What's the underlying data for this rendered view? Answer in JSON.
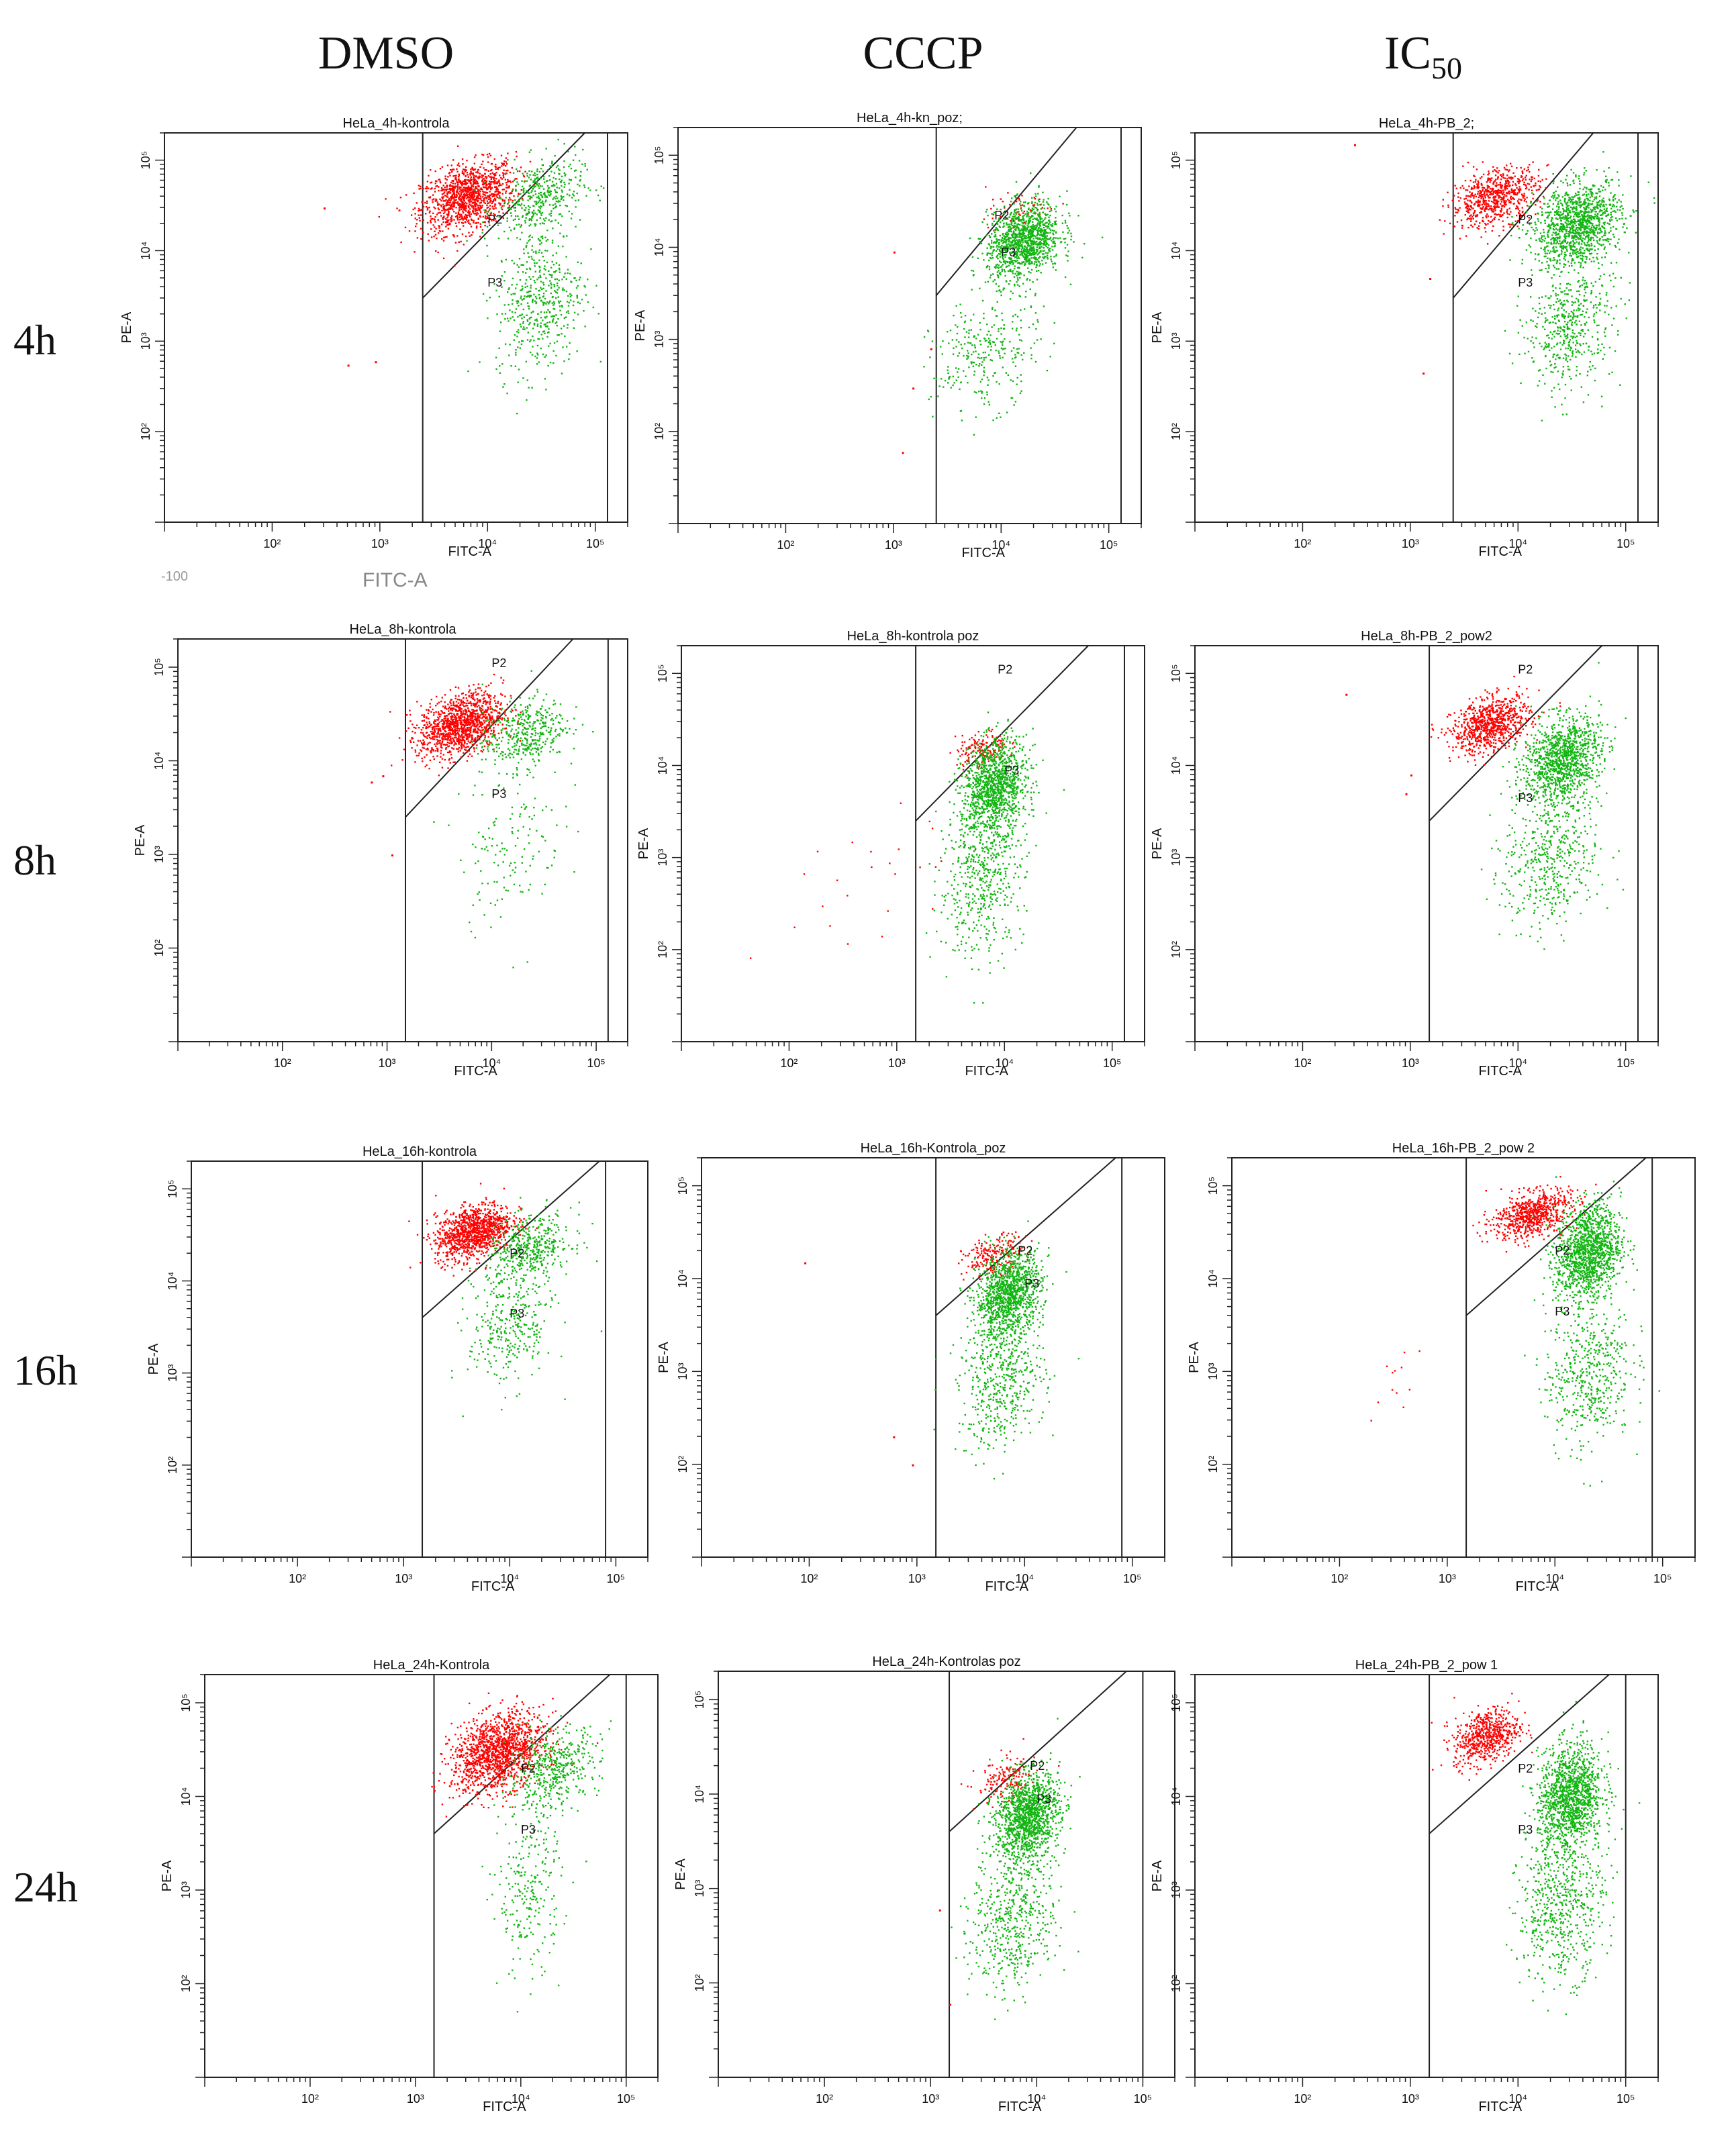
{
  "figure": {
    "columns": [
      "DMSO",
      "CCCP",
      "IC"
    ],
    "ic_subscript": "50",
    "rows": [
      "4h",
      "8h",
      "16h",
      "24h"
    ],
    "stray_labels": [
      "-100",
      "FITC-A"
    ]
  },
  "colors": {
    "red_population": "#ff0000",
    "green_population": "#12b512",
    "axis": "#222222"
  },
  "chart_data": [
    {
      "type": "scatter",
      "title": "HeLa_4h-kontrola",
      "xlabel": "FITC-A",
      "ylabel": "PE-A",
      "scale": "log",
      "xlim": [
        10,
        200000
      ],
      "ylim": [
        10,
        200000
      ],
      "xticks": [
        "10²",
        "10³",
        "10⁴",
        "10⁵"
      ],
      "yticks": [
        "10²",
        "10³",
        "10⁴",
        "10⁵"
      ],
      "gates": [
        "P2",
        "P3"
      ],
      "series": [
        {
          "name": "P2",
          "color": "red",
          "clusters": [
            {
              "x": 6500,
              "y": 40000,
              "sx": 0.22,
              "sy": 0.18,
              "n": 1200
            }
          ],
          "extras": [
            [
              300,
              30000
            ],
            [
              900,
              600
            ],
            [
              500,
              550
            ]
          ]
        },
        {
          "name": "P3",
          "color": "green",
          "clusters": [
            {
              "x": 30000,
              "y": 40000,
              "sx": 0.2,
              "sy": 0.2,
              "n": 400
            },
            {
              "x": 30000,
              "y": 3000,
              "sx": 0.2,
              "sy": 0.4,
              "n": 500
            }
          ]
        }
      ]
    },
    {
      "type": "scatter",
      "title": "HeLa_4h-kn_poz;",
      "xlabel": "FITC-A",
      "ylabel": "PE-A",
      "scale": "log",
      "xlim": [
        10,
        200000
      ],
      "ylim": [
        10,
        200000
      ],
      "xticks": [
        "10²",
        "10³",
        "10⁴",
        "10⁵"
      ],
      "yticks": [
        "10²",
        "10³",
        "10⁴",
        "10⁵"
      ],
      "gates": [
        "P2",
        "P3"
      ],
      "series": [
        {
          "name": "P2",
          "color": "red",
          "clusters": [
            {
              "x": 14000,
              "y": 25000,
              "sx": 0.15,
              "sy": 0.1,
              "n": 60
            }
          ],
          "extras": [
            [
              1000,
              9000
            ],
            [
              2200,
              800
            ],
            [
              1500,
              300
            ],
            [
              1200,
              60
            ]
          ]
        },
        {
          "name": "P3",
          "color": "green",
          "clusters": [
            {
              "x": 16000,
              "y": 12000,
              "sx": 0.17,
              "sy": 0.2,
              "n": 1200
            },
            {
              "x": 7000,
              "y": 700,
              "sx": 0.25,
              "sy": 0.3,
              "n": 300
            }
          ]
        }
      ]
    },
    {
      "type": "scatter",
      "title": "HeLa_4h-PB_2;",
      "xlabel": "FITC-A",
      "ylabel": "PE-A",
      "scale": "log",
      "xlim": [
        10,
        200000
      ],
      "ylim": [
        10,
        200000
      ],
      "xticks": [
        "10²",
        "10³",
        "10⁴",
        "10⁵"
      ],
      "yticks": [
        "10²",
        "10³",
        "10⁴",
        "10⁵"
      ],
      "gates": [
        "P2",
        "P3"
      ],
      "series": [
        {
          "name": "P2",
          "color": "red",
          "clusters": [
            {
              "x": 6000,
              "y": 40000,
              "sx": 0.2,
              "sy": 0.15,
              "n": 700
            }
          ],
          "extras": [
            [
              300,
              150000
            ],
            [
              1500,
              5000
            ],
            [
              1300,
              450
            ]
          ]
        },
        {
          "name": "P3",
          "color": "green",
          "clusters": [
            {
              "x": 35000,
              "y": 20000,
              "sx": 0.2,
              "sy": 0.22,
              "n": 1200
            },
            {
              "x": 30000,
              "y": 1500,
              "sx": 0.2,
              "sy": 0.35,
              "n": 500
            }
          ]
        }
      ]
    },
    {
      "type": "scatter",
      "title": "HeLa_8h-kontrola",
      "xlabel": "FITC-A",
      "ylabel": "PE-A",
      "scale": "log",
      "xlim": [
        10,
        200000
      ],
      "ylim": [
        10,
        200000
      ],
      "xticks": [
        "10²",
        "10³",
        "10⁴",
        "10⁵"
      ],
      "yticks": [
        "10²",
        "10³",
        "10⁴",
        "10⁵"
      ],
      "gates": [
        "P2",
        "P3"
      ],
      "series": [
        {
          "name": "P2",
          "color": "red",
          "clusters": [
            {
              "x": 5000,
              "y": 25000,
              "sx": 0.2,
              "sy": 0.16,
              "n": 1200
            }
          ],
          "extras": [
            [
              900,
              7000
            ],
            [
              700,
              6000
            ],
            [
              1100,
              1000
            ]
          ]
        },
        {
          "name": "P3",
          "color": "green",
          "clusters": [
            {
              "x": 20000,
              "y": 20000,
              "sx": 0.2,
              "sy": 0.18,
              "n": 400
            },
            {
              "x": 15000,
              "y": 1500,
              "sx": 0.25,
              "sy": 0.45,
              "n": 150
            }
          ]
        }
      ]
    },
    {
      "type": "scatter",
      "title": "HeLa_8h-kontrola poz",
      "xlabel": "FITC-A",
      "ylabel": "PE-A",
      "scale": "log",
      "xlim": [
        10,
        200000
      ],
      "ylim": [
        10,
        200000
      ],
      "xticks": [
        "10²",
        "10³",
        "10⁴",
        "10⁵"
      ],
      "yticks": [
        "10²",
        "10³",
        "10⁴",
        "10⁵"
      ],
      "gates": [
        "P2",
        "P3"
      ],
      "series": [
        {
          "name": "P2",
          "color": "red",
          "clusters": [
            {
              "x": 6000,
              "y": 15000,
              "sx": 0.12,
              "sy": 0.1,
              "n": 150
            },
            {
              "x": 600,
              "y": 500,
              "sx": 0.4,
              "sy": 0.5,
              "n": 25
            }
          ]
        },
        {
          "name": "P3",
          "color": "green",
          "clusters": [
            {
              "x": 8000,
              "y": 6000,
              "sx": 0.15,
              "sy": 0.25,
              "n": 1200
            },
            {
              "x": 6000,
              "y": 600,
              "sx": 0.2,
              "sy": 0.4,
              "n": 500
            }
          ]
        }
      ]
    },
    {
      "type": "scatter",
      "title": "HeLa_8h-PB_2_pow2",
      "xlabel": "FITC-A",
      "ylabel": "PE-A",
      "scale": "log",
      "xlim": [
        10,
        200000
      ],
      "ylim": [
        10,
        200000
      ],
      "xticks": [
        "10²",
        "10³",
        "10⁴",
        "10⁵"
      ],
      "yticks": [
        "10²",
        "10³",
        "10⁴",
        "10⁵"
      ],
      "gates": [
        "P2",
        "P3"
      ],
      "series": [
        {
          "name": "P2",
          "color": "red",
          "clusters": [
            {
              "x": 5500,
              "y": 28000,
              "sx": 0.18,
              "sy": 0.14,
              "n": 800
            }
          ],
          "extras": [
            [
              250,
              60000
            ],
            [
              1000,
              8000
            ],
            [
              900,
              5000
            ]
          ]
        },
        {
          "name": "P3",
          "color": "green",
          "clusters": [
            {
              "x": 25000,
              "y": 12000,
              "sx": 0.18,
              "sy": 0.22,
              "n": 1100
            },
            {
              "x": 20000,
              "y": 1000,
              "sx": 0.22,
              "sy": 0.4,
              "n": 500
            }
          ]
        }
      ]
    },
    {
      "type": "scatter",
      "title": "HeLa_16h-kontrola",
      "xlabel": "FITC-A",
      "ylabel": "PE-A",
      "scale": "log",
      "xlim": [
        10,
        200000
      ],
      "ylim": [
        10,
        200000
      ],
      "xticks": [
        "10²",
        "10³",
        "10⁴",
        "10⁵"
      ],
      "yticks": [
        "10²",
        "10³",
        "10⁴",
        "10⁵"
      ],
      "gates": [
        "P2",
        "P3"
      ],
      "series": [
        {
          "name": "P2",
          "color": "red",
          "clusters": [
            {
              "x": 4500,
              "y": 35000,
              "sx": 0.18,
              "sy": 0.14,
              "n": 1100
            }
          ]
        },
        {
          "name": "P3",
          "color": "green",
          "clusters": [
            {
              "x": 15000,
              "y": 22000,
              "sx": 0.2,
              "sy": 0.18,
              "n": 450
            },
            {
              "x": 10000,
              "y": 3000,
              "sx": 0.2,
              "sy": 0.3,
              "n": 300
            }
          ]
        }
      ]
    },
    {
      "type": "scatter",
      "title": "HeLa_16h-Kontrola_poz",
      "xlabel": "FITC-A",
      "ylabel": "PE-A",
      "scale": "log",
      "xlim": [
        10,
        200000
      ],
      "ylim": [
        10,
        200000
      ],
      "xticks": [
        "10²",
        "10³",
        "10⁴",
        "10⁵"
      ],
      "yticks": [
        "10²",
        "10³",
        "10⁴",
        "10⁵"
      ],
      "gates": [
        "P2",
        "P3"
      ],
      "series": [
        {
          "name": "P2",
          "color": "red",
          "clusters": [
            {
              "x": 5000,
              "y": 18000,
              "sx": 0.14,
              "sy": 0.1,
              "n": 200
            }
          ],
          "extras": [
            [
              90,
              15000
            ],
            [
              600,
              200
            ],
            [
              900,
              100
            ]
          ]
        },
        {
          "name": "P3",
          "color": "green",
          "clusters": [
            {
              "x": 7000,
              "y": 7000,
              "sx": 0.15,
              "sy": 0.22,
              "n": 1200
            },
            {
              "x": 6000,
              "y": 800,
              "sx": 0.2,
              "sy": 0.35,
              "n": 500
            }
          ]
        }
      ]
    },
    {
      "type": "scatter",
      "title": "HeLa_16h-PB_2_pow 2",
      "xlabel": "FITC-A",
      "ylabel": "PE-A",
      "scale": "log",
      "xlim": [
        10,
        200000
      ],
      "ylim": [
        10,
        200000
      ],
      "xticks": [
        "10²",
        "10³",
        "10⁴",
        "10⁵"
      ],
      "yticks": [
        "10²",
        "10³",
        "10⁴",
        "10⁵"
      ],
      "gates": [
        "P2",
        "P3"
      ],
      "series": [
        {
          "name": "P2",
          "color": "red",
          "clusters": [
            {
              "x": 6000,
              "y": 50000,
              "sx": 0.18,
              "sy": 0.12,
              "n": 700
            },
            {
              "x": 300,
              "y": 900,
              "sx": 0.2,
              "sy": 0.3,
              "n": 12
            }
          ]
        },
        {
          "name": "P3",
          "color": "green",
          "clusters": [
            {
              "x": 20000,
              "y": 20000,
              "sx": 0.15,
              "sy": 0.25,
              "n": 1300
            },
            {
              "x": 20000,
              "y": 1000,
              "sx": 0.2,
              "sy": 0.4,
              "n": 500
            }
          ]
        }
      ]
    },
    {
      "type": "scatter",
      "title": "HeLa_24h-Kontrola",
      "xlabel": "FITC-A",
      "ylabel": "PE-A",
      "scale": "log",
      "xlim": [
        10,
        200000
      ],
      "ylim": [
        10,
        200000
      ],
      "xticks": [
        "10²",
        "10³",
        "10⁴",
        "10⁵"
      ],
      "yticks": [
        "10²",
        "10³",
        "10⁴",
        "10⁵"
      ],
      "gates": [
        "P2",
        "P3"
      ],
      "series": [
        {
          "name": "P2",
          "color": "red",
          "clusters": [
            {
              "x": 6000,
              "y": 30000,
              "sx": 0.22,
              "sy": 0.2,
              "n": 1400
            }
          ]
        },
        {
          "name": "P3",
          "color": "green",
          "clusters": [
            {
              "x": 20000,
              "y": 20000,
              "sx": 0.22,
              "sy": 0.2,
              "n": 450
            },
            {
              "x": 12000,
              "y": 1000,
              "sx": 0.15,
              "sy": 0.45,
              "n": 250
            }
          ]
        }
      ]
    },
    {
      "type": "scatter",
      "title": "HeLa_24h-Kontrolas poz",
      "xlabel": "FITC-A",
      "ylabel": "PE-A",
      "scale": "log",
      "xlim": [
        10,
        200000
      ],
      "ylim": [
        10,
        200000
      ],
      "xticks": [
        "10²",
        "10³",
        "10⁴",
        "10⁵"
      ],
      "yticks": [
        "10²",
        "10³",
        "10⁴",
        "10⁵"
      ],
      "gates": [
        "P2",
        "P3"
      ],
      "series": [
        {
          "name": "P2",
          "color": "red",
          "clusters": [
            {
              "x": 5000,
              "y": 14000,
              "sx": 0.14,
              "sy": 0.12,
              "n": 150
            }
          ],
          "extras": [
            [
              1200,
              600
            ],
            [
              1500,
              60
            ]
          ]
        },
        {
          "name": "P3",
          "color": "green",
          "clusters": [
            {
              "x": 8000,
              "y": 6000,
              "sx": 0.15,
              "sy": 0.22,
              "n": 1300
            },
            {
              "x": 6000,
              "y": 500,
              "sx": 0.2,
              "sy": 0.4,
              "n": 550
            }
          ]
        }
      ]
    },
    {
      "type": "scatter",
      "title": "HeLa_24h-PB_2_pow 1",
      "xlabel": "FITC-A",
      "ylabel": "PE-A",
      "scale": "log",
      "xlim": [
        10,
        200000
      ],
      "ylim": [
        10,
        200000
      ],
      "xticks": [
        "10²",
        "10³",
        "10⁴",
        "10⁵"
      ],
      "yticks": [
        "10²",
        "10³",
        "10⁴",
        "10⁵"
      ],
      "gates": [
        "P2",
        "P3"
      ],
      "series": [
        {
          "name": "P2",
          "color": "red",
          "clusters": [
            {
              "x": 5000,
              "y": 45000,
              "sx": 0.15,
              "sy": 0.14,
              "n": 600
            }
          ]
        },
        {
          "name": "P3",
          "color": "green",
          "clusters": [
            {
              "x": 30000,
              "y": 10000,
              "sx": 0.15,
              "sy": 0.28,
              "n": 1300
            },
            {
              "x": 25000,
              "y": 700,
              "sx": 0.2,
              "sy": 0.4,
              "n": 600
            }
          ]
        }
      ]
    }
  ]
}
